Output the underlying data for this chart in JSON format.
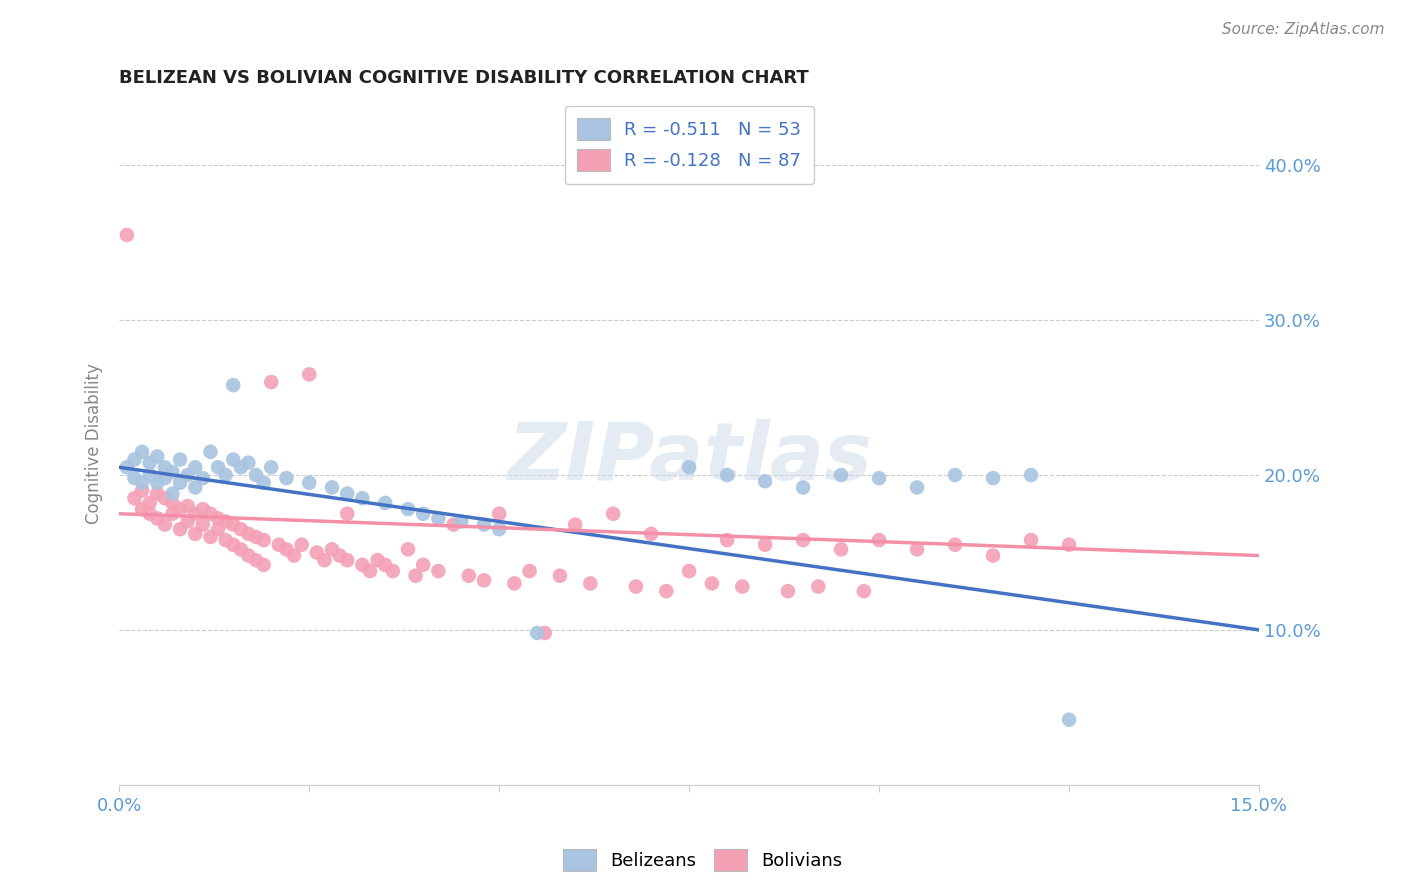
{
  "title": "BELIZEAN VS BOLIVIAN COGNITIVE DISABILITY CORRELATION CHART",
  "source": "Source: ZipAtlas.com",
  "ylabel": "Cognitive Disability",
  "xlim": [
    0.0,
    0.15
  ],
  "ylim": [
    0.0,
    0.44
  ],
  "x_tick_positions": [
    0.0,
    0.025,
    0.05,
    0.075,
    0.1,
    0.125,
    0.15
  ],
  "x_tick_labels": [
    "0.0%",
    "",
    "",
    "",
    "",
    "",
    "15.0%"
  ],
  "y_tick_positions": [
    0.1,
    0.2,
    0.3,
    0.4
  ],
  "y_tick_labels": [
    "10.0%",
    "20.0%",
    "30.0%",
    "40.0%"
  ],
  "belizean_color": "#a8c4e0",
  "bolivian_color": "#f4a0b5",
  "belizean_line_color": "#4472c4",
  "bolivian_line_color": "#f48fa8",
  "belizean_R": -0.511,
  "belizean_N": 53,
  "bolivian_R": -0.128,
  "bolivian_N": 87,
  "belizean_scatter": [
    [
      0.001,
      0.205
    ],
    [
      0.002,
      0.21
    ],
    [
      0.002,
      0.198
    ],
    [
      0.003,
      0.215
    ],
    [
      0.003,
      0.195
    ],
    [
      0.004,
      0.208
    ],
    [
      0.004,
      0.2
    ],
    [
      0.005,
      0.212
    ],
    [
      0.005,
      0.195
    ],
    [
      0.006,
      0.205
    ],
    [
      0.006,
      0.198
    ],
    [
      0.007,
      0.202
    ],
    [
      0.007,
      0.188
    ],
    [
      0.008,
      0.21
    ],
    [
      0.008,
      0.195
    ],
    [
      0.009,
      0.2
    ],
    [
      0.01,
      0.205
    ],
    [
      0.01,
      0.192
    ],
    [
      0.011,
      0.198
    ],
    [
      0.012,
      0.215
    ],
    [
      0.013,
      0.205
    ],
    [
      0.014,
      0.2
    ],
    [
      0.015,
      0.258
    ],
    [
      0.015,
      0.21
    ],
    [
      0.016,
      0.205
    ],
    [
      0.017,
      0.208
    ],
    [
      0.018,
      0.2
    ],
    [
      0.019,
      0.195
    ],
    [
      0.02,
      0.205
    ],
    [
      0.022,
      0.198
    ],
    [
      0.025,
      0.195
    ],
    [
      0.028,
      0.192
    ],
    [
      0.03,
      0.188
    ],
    [
      0.032,
      0.185
    ],
    [
      0.035,
      0.182
    ],
    [
      0.038,
      0.178
    ],
    [
      0.04,
      0.175
    ],
    [
      0.042,
      0.172
    ],
    [
      0.045,
      0.17
    ],
    [
      0.048,
      0.168
    ],
    [
      0.05,
      0.165
    ],
    [
      0.055,
      0.098
    ],
    [
      0.075,
      0.205
    ],
    [
      0.08,
      0.2
    ],
    [
      0.085,
      0.196
    ],
    [
      0.09,
      0.192
    ],
    [
      0.095,
      0.2
    ],
    [
      0.1,
      0.198
    ],
    [
      0.105,
      0.192
    ],
    [
      0.11,
      0.2
    ],
    [
      0.115,
      0.198
    ],
    [
      0.12,
      0.2
    ],
    [
      0.125,
      0.042
    ]
  ],
  "bolivian_scatter": [
    [
      0.001,
      0.355
    ],
    [
      0.002,
      0.185
    ],
    [
      0.003,
      0.19
    ],
    [
      0.003,
      0.178
    ],
    [
      0.004,
      0.182
    ],
    [
      0.004,
      0.175
    ],
    [
      0.005,
      0.188
    ],
    [
      0.005,
      0.172
    ],
    [
      0.006,
      0.185
    ],
    [
      0.006,
      0.168
    ],
    [
      0.007,
      0.182
    ],
    [
      0.007,
      0.175
    ],
    [
      0.008,
      0.178
    ],
    [
      0.008,
      0.165
    ],
    [
      0.009,
      0.18
    ],
    [
      0.009,
      0.17
    ],
    [
      0.01,
      0.175
    ],
    [
      0.01,
      0.162
    ],
    [
      0.011,
      0.178
    ],
    [
      0.011,
      0.168
    ],
    [
      0.012,
      0.175
    ],
    [
      0.012,
      0.16
    ],
    [
      0.013,
      0.172
    ],
    [
      0.013,
      0.165
    ],
    [
      0.014,
      0.17
    ],
    [
      0.014,
      0.158
    ],
    [
      0.015,
      0.168
    ],
    [
      0.015,
      0.155
    ],
    [
      0.016,
      0.165
    ],
    [
      0.016,
      0.152
    ],
    [
      0.017,
      0.162
    ],
    [
      0.017,
      0.148
    ],
    [
      0.018,
      0.16
    ],
    [
      0.018,
      0.145
    ],
    [
      0.019,
      0.158
    ],
    [
      0.019,
      0.142
    ],
    [
      0.02,
      0.26
    ],
    [
      0.021,
      0.155
    ],
    [
      0.022,
      0.152
    ],
    [
      0.023,
      0.148
    ],
    [
      0.024,
      0.155
    ],
    [
      0.025,
      0.265
    ],
    [
      0.026,
      0.15
    ],
    [
      0.027,
      0.145
    ],
    [
      0.028,
      0.152
    ],
    [
      0.029,
      0.148
    ],
    [
      0.03,
      0.175
    ],
    [
      0.03,
      0.145
    ],
    [
      0.032,
      0.142
    ],
    [
      0.033,
      0.138
    ],
    [
      0.034,
      0.145
    ],
    [
      0.035,
      0.142
    ],
    [
      0.036,
      0.138
    ],
    [
      0.038,
      0.152
    ],
    [
      0.039,
      0.135
    ],
    [
      0.04,
      0.142
    ],
    [
      0.042,
      0.138
    ],
    [
      0.044,
      0.168
    ],
    [
      0.046,
      0.135
    ],
    [
      0.048,
      0.132
    ],
    [
      0.05,
      0.175
    ],
    [
      0.052,
      0.13
    ],
    [
      0.054,
      0.138
    ],
    [
      0.056,
      0.098
    ],
    [
      0.058,
      0.135
    ],
    [
      0.06,
      0.168
    ],
    [
      0.062,
      0.13
    ],
    [
      0.065,
      0.175
    ],
    [
      0.068,
      0.128
    ],
    [
      0.07,
      0.162
    ],
    [
      0.072,
      0.125
    ],
    [
      0.075,
      0.138
    ],
    [
      0.078,
      0.13
    ],
    [
      0.08,
      0.158
    ],
    [
      0.082,
      0.128
    ],
    [
      0.085,
      0.155
    ],
    [
      0.088,
      0.125
    ],
    [
      0.09,
      0.158
    ],
    [
      0.092,
      0.128
    ],
    [
      0.095,
      0.152
    ],
    [
      0.098,
      0.125
    ],
    [
      0.1,
      0.158
    ],
    [
      0.105,
      0.152
    ],
    [
      0.11,
      0.155
    ],
    [
      0.115,
      0.148
    ],
    [
      0.12,
      0.158
    ],
    [
      0.125,
      0.155
    ]
  ],
  "watermark": "ZIPatlas",
  "watermark_color": "#d0dce8",
  "grid_color": "#cccccc",
  "tick_label_color": "#5b9bd5",
  "title_color": "#222222",
  "source_color": "#888888",
  "ylabel_color": "#888888"
}
